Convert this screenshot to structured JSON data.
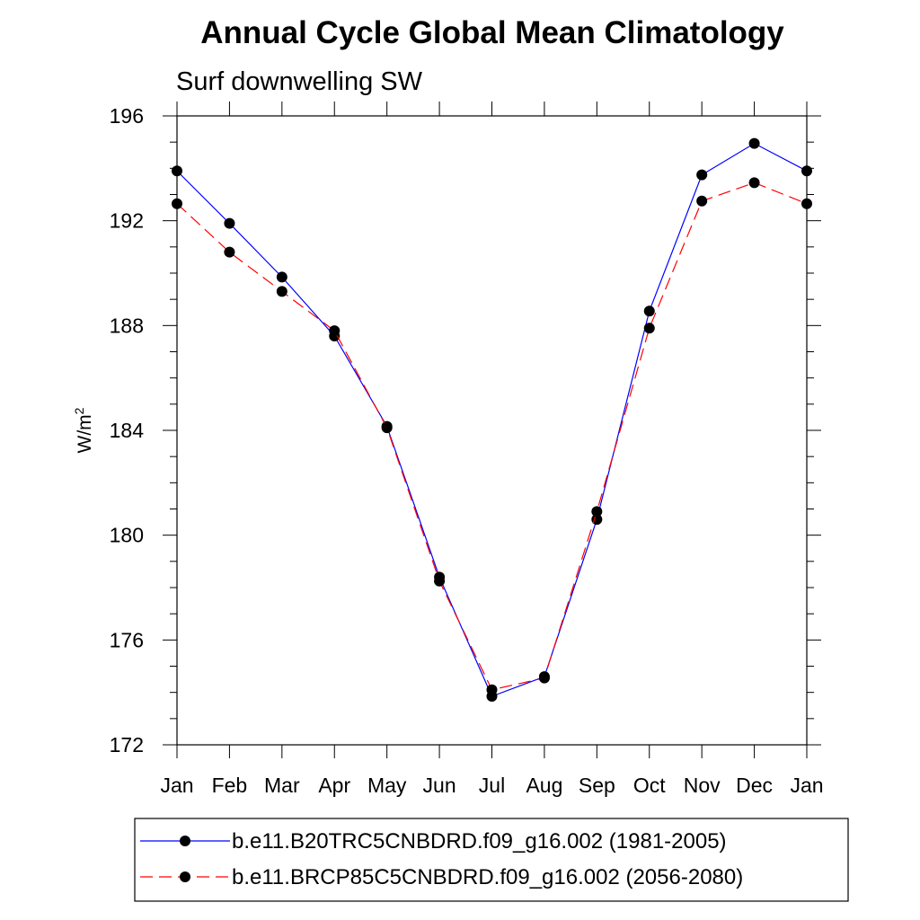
{
  "chart_data": {
    "type": "line",
    "title": "Annual Cycle Global Mean Climatology",
    "subtitle": "Surf downwelling SW",
    "xlabel": "",
    "ylabel": "W/m",
    "ylabel_superscript": "2",
    "categories": [
      "Jan",
      "Feb",
      "Mar",
      "Apr",
      "May",
      "Jun",
      "Jul",
      "Aug",
      "Sep",
      "Oct",
      "Nov",
      "Dec",
      "Jan"
    ],
    "ylim": [
      172,
      196
    ],
    "yticks": [
      172,
      176,
      180,
      184,
      188,
      192,
      196
    ],
    "ytick_labels": [
      "172",
      "176",
      "180",
      "184",
      "188",
      "192",
      "196"
    ],
    "series": [
      {
        "name": "b.e11.B20TRC5CNBDRD.f09_g16.002 (1981-2005)",
        "color": "#0000ff",
        "style": "solid",
        "values": [
          193.9,
          191.9,
          189.85,
          187.6,
          184.15,
          178.4,
          173.85,
          174.6,
          180.6,
          188.55,
          193.75,
          194.95,
          193.9
        ]
      },
      {
        "name": "b.e11.BRCP85C5CNBDRD.f09_g16.002 (2056-2080)",
        "color": "#ff0000",
        "style": "dashed",
        "values": [
          192.65,
          190.8,
          189.3,
          187.8,
          184.1,
          178.25,
          174.1,
          174.55,
          180.9,
          187.9,
          192.75,
          193.45,
          192.65
        ]
      }
    ],
    "legend_position": "bottom",
    "grid": false
  }
}
